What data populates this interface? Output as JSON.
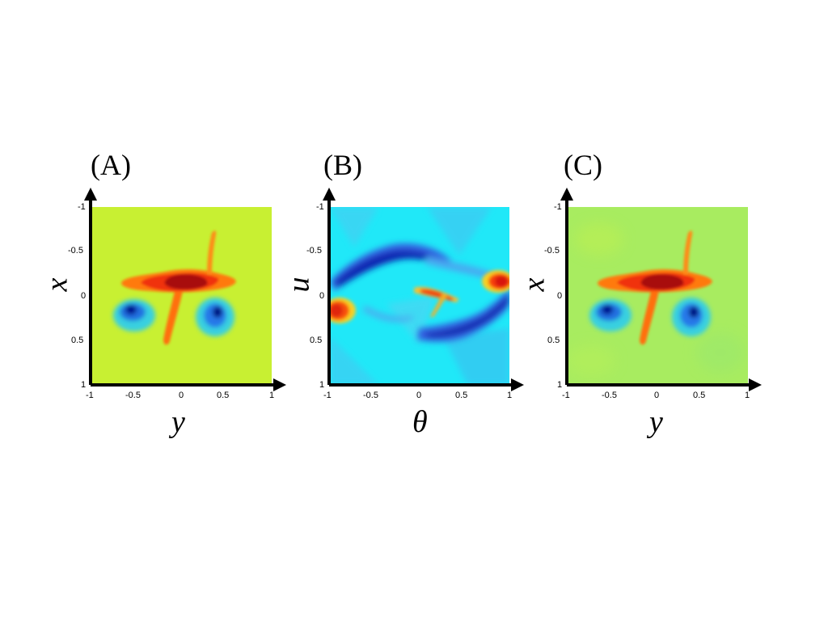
{
  "chart_data": [
    {
      "type": "heatmap",
      "panel_label": "(A)",
      "xlabel": "y",
      "ylabel": "x",
      "xlim": [
        -1,
        1
      ],
      "ylim": [
        -1,
        1
      ],
      "x_ticks": [
        "-1",
        "-0.5",
        "0",
        "0.5",
        "1"
      ],
      "y_ticks": [
        "-1",
        "-0.5",
        "0",
        "0.5",
        "1"
      ],
      "y_axis_inverted": true,
      "background_color": "#c8f032",
      "features": [
        {
          "kind": "red-blob",
          "x": [
            -0.65,
            0.6
          ],
          "y": [
            -0.3,
            0.05
          ],
          "peak": "dark red"
        },
        {
          "kind": "red-streak",
          "from": [
            0.35,
            -0.75
          ],
          "to": [
            0.3,
            -0.15
          ]
        },
        {
          "kind": "red-streak",
          "from": [
            -0.05,
            0.1
          ],
          "to": [
            -0.15,
            0.5
          ]
        },
        {
          "kind": "blue-blob",
          "center": [
            -0.55,
            0.15
          ],
          "size": 0.15
        },
        {
          "kind": "blue-blob",
          "center": [
            0.4,
            0.2
          ],
          "size": 0.18
        }
      ]
    },
    {
      "type": "heatmap",
      "panel_label": "(B)",
      "xlabel": "θ",
      "ylabel": "u",
      "xlim": [
        -1,
        1
      ],
      "ylim": [
        -1,
        1
      ],
      "x_ticks": [
        "-1",
        "-0.5",
        "0",
        "0.5",
        "1"
      ],
      "y_ticks": [
        "-1",
        "-0.5",
        "0",
        "0.5",
        "1"
      ],
      "y_axis_inverted": true,
      "background_color": "#20e8f8",
      "features": [
        {
          "kind": "blue-band",
          "path": "upper arc from (-1,-0.1) through (-0.3,-0.6) to (0.4,-0.4)"
        },
        {
          "kind": "blue-band",
          "path": "lower arc from (0,0.4) through (0.5,0.3) to (1,0.1)"
        },
        {
          "kind": "red-blob",
          "center": [
            -0.95,
            0.05
          ]
        },
        {
          "kind": "red-blob",
          "center": [
            0.95,
            -0.2
          ]
        },
        {
          "kind": "red-streak",
          "center": [
            0.25,
            -0.05
          ]
        }
      ]
    },
    {
      "type": "heatmap",
      "panel_label": "(C)",
      "xlabel": "y",
      "ylabel": "x",
      "xlim": [
        -1,
        1
      ],
      "ylim": [
        -1,
        1
      ],
      "x_ticks": [
        "-1",
        "-0.5",
        "0",
        "0.5",
        "1"
      ],
      "y_ticks": [
        "-1",
        "-0.5",
        "0",
        "0.5",
        "1"
      ],
      "y_axis_inverted": true,
      "background_color": "#a8ec60",
      "features": [
        {
          "kind": "red-blob",
          "x": [
            -0.65,
            0.6
          ],
          "y": [
            -0.3,
            0.05
          ],
          "peak": "dark red"
        },
        {
          "kind": "red-streak",
          "from": [
            0.35,
            -0.75
          ],
          "to": [
            0.3,
            -0.15
          ]
        },
        {
          "kind": "red-streak",
          "from": [
            -0.05,
            0.1
          ],
          "to": [
            -0.15,
            0.5
          ]
        },
        {
          "kind": "blue-blob",
          "center": [
            -0.55,
            0.15
          ],
          "size": 0.15
        },
        {
          "kind": "blue-blob",
          "center": [
            0.4,
            0.2
          ],
          "size": 0.18
        }
      ]
    }
  ]
}
